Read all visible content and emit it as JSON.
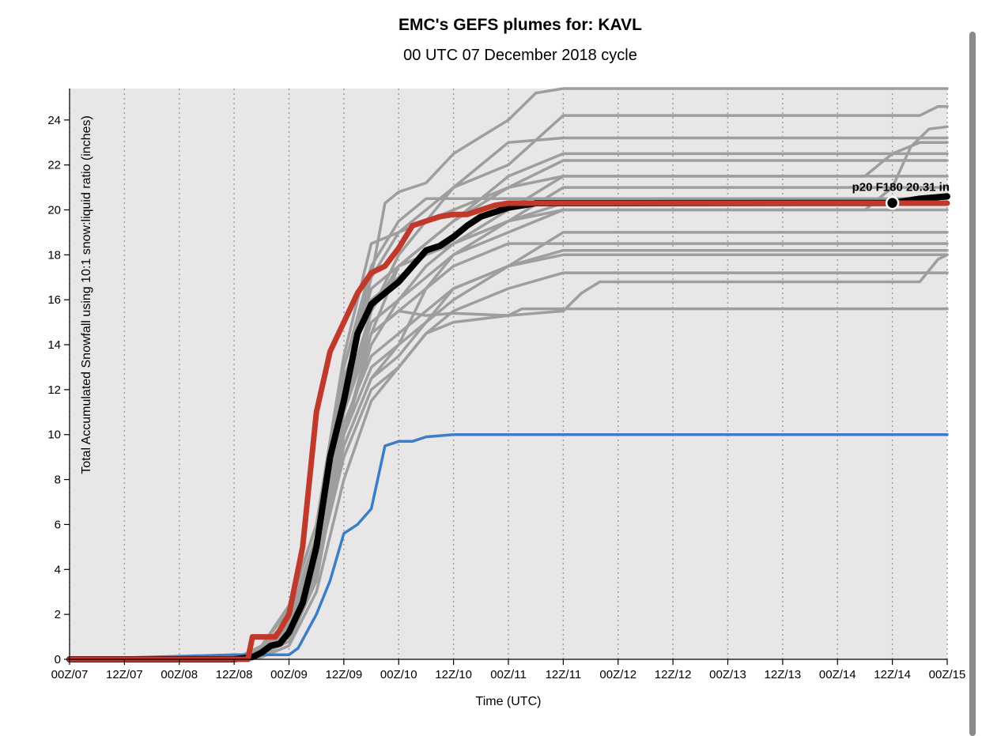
{
  "chart_data": {
    "type": "line",
    "title": "EMC's GEFS plumes for: KAVL",
    "subtitle": "00 UTC 07 December 2018 cycle",
    "xlabel": "Time (UTC)",
    "ylabel": "Total Accumulated Snowfall using 10:1 snow:liquid ratio (inches)",
    "x_unit": "forecast hour (F000 = 00Z/07)",
    "xlim": [
      0,
      192
    ],
    "ylim": [
      0,
      25.4
    ],
    "yticks": [
      0,
      2,
      4,
      6,
      8,
      10,
      12,
      14,
      16,
      18,
      20,
      22,
      24
    ],
    "xtick_labels": [
      "00Z/07",
      "12Z/07",
      "00Z/08",
      "12Z/08",
      "00Z/09",
      "12Z/09",
      "00Z/10",
      "12Z/10",
      "00Z/11",
      "12Z/11",
      "00Z/12",
      "12Z/12",
      "00Z/13",
      "12Z/13",
      "00Z/14",
      "12Z/14",
      "00Z/15"
    ],
    "grid": true,
    "legend": "none",
    "colors": {
      "members": "#9e9e9e",
      "black_series": "#000000",
      "red_series": "#c0392b",
      "blue_series": "#3a7dc9",
      "plot_bg": "#e8e6e7"
    },
    "annotation": {
      "text": "p20 F180 20.31 in",
      "x": 180,
      "y": 20.31
    },
    "series": [
      {
        "style": "gray",
        "x": [
          0,
          36,
          42,
          48,
          54,
          60,
          66,
          69,
          72,
          78,
          84,
          96,
          102,
          108,
          192
        ],
        "values": [
          0,
          0,
          0.5,
          1.5,
          5,
          12,
          17,
          20.3,
          20.8,
          21.2,
          22.5,
          24,
          25.2,
          25.4,
          25.4
        ]
      },
      {
        "style": "gray",
        "x": [
          0,
          36,
          42,
          48,
          54,
          60,
          66,
          72,
          78,
          84,
          90,
          96,
          108,
          192
        ],
        "values": [
          0,
          0,
          0.3,
          1.2,
          4.5,
          11,
          15.5,
          18,
          19.5,
          21,
          22,
          23,
          23.2,
          23.2
        ]
      },
      {
        "style": "gray",
        "x": [
          0,
          36,
          42,
          48,
          54,
          60,
          66,
          72,
          78,
          84,
          90,
          96,
          102,
          108,
          192
        ],
        "values": [
          0,
          0,
          0.5,
          1.8,
          5.5,
          13,
          17.5,
          19.5,
          20.5,
          20.5,
          20.5,
          20.5,
          20.5,
          20.5,
          20.5
        ]
      },
      {
        "style": "gray",
        "x": [
          0,
          36,
          42,
          48,
          54,
          60,
          66,
          72,
          78,
          84,
          96,
          108,
          192
        ],
        "values": [
          0,
          0,
          0.2,
          1,
          4,
          10,
          14.5,
          17.5,
          18.5,
          19.5,
          21.5,
          22.5,
          22.5
        ]
      },
      {
        "style": "gray",
        "x": [
          0,
          36,
          42,
          48,
          54,
          60,
          66,
          72,
          78,
          84,
          96,
          108,
          192
        ],
        "values": [
          0,
          0,
          0.6,
          2.4,
          6,
          13.5,
          18.5,
          19,
          19.5,
          20,
          21,
          21.5,
          21.5
        ]
      },
      {
        "style": "gray",
        "x": [
          0,
          36,
          42,
          48,
          54,
          60,
          66,
          72,
          78,
          84,
          96,
          108,
          192
        ],
        "values": [
          0,
          0,
          0.4,
          1.6,
          5,
          12,
          16.5,
          17.5,
          18,
          18.5,
          19.5,
          21,
          21
        ]
      },
      {
        "style": "gray",
        "x": [
          0,
          36,
          42,
          48,
          54,
          60,
          66,
          72,
          78,
          84,
          96,
          108,
          192
        ],
        "values": [
          0,
          0,
          0.3,
          1.2,
          4.5,
          11,
          15,
          16,
          17,
          18,
          19,
          20,
          20
        ]
      },
      {
        "style": "gray",
        "x": [
          0,
          36,
          42,
          48,
          54,
          60,
          66,
          72,
          78,
          84,
          96,
          108,
          192
        ],
        "values": [
          0,
          0,
          0.2,
          0.8,
          3.5,
          10,
          13,
          14,
          15,
          16,
          17.5,
          19,
          19
        ]
      },
      {
        "style": "gray",
        "x": [
          0,
          36,
          42,
          48,
          54,
          60,
          66,
          72,
          78,
          84,
          96,
          108,
          192
        ],
        "values": [
          0,
          0,
          0.5,
          1.5,
          5,
          11.5,
          14.5,
          15.5,
          16.5,
          17.5,
          18.5,
          18.5,
          18.5
        ]
      },
      {
        "style": "gray",
        "x": [
          0,
          36,
          42,
          48,
          54,
          60,
          66,
          72,
          78,
          84,
          96,
          108,
          192
        ],
        "values": [
          0,
          0,
          0.4,
          1.4,
          4.5,
          10.5,
          13.5,
          14.5,
          15.5,
          16.5,
          17.5,
          18.2,
          18.2
        ]
      },
      {
        "style": "gray",
        "x": [
          0,
          36,
          42,
          48,
          54,
          60,
          66,
          72,
          78,
          84,
          96,
          108,
          192
        ],
        "values": [
          0,
          0,
          0.2,
          1,
          3.8,
          9.5,
          12.5,
          13.5,
          15,
          16.5,
          17.5,
          18,
          18
        ]
      },
      {
        "style": "gray",
        "x": [
          0,
          36,
          42,
          48,
          54,
          60,
          66,
          72,
          78,
          84,
          96,
          108,
          192
        ],
        "values": [
          0,
          0,
          0.3,
          1.1,
          4,
          9,
          12,
          13,
          14.5,
          15.5,
          16.5,
          17.2,
          17.2
        ]
      },
      {
        "style": "gray",
        "x": [
          0,
          36,
          42,
          48,
          54,
          60,
          66,
          72,
          78,
          84,
          96,
          108,
          112,
          116,
          186,
          190,
          192
        ],
        "values": [
          0,
          0,
          0.1,
          0.6,
          3,
          8,
          11.5,
          13,
          14.5,
          15,
          15.3,
          15.5,
          16.3,
          16.8,
          16.8,
          17.8,
          18
        ]
      },
      {
        "style": "gray",
        "x": [
          0,
          36,
          42,
          48,
          54,
          60,
          66,
          72,
          78,
          84,
          96,
          99,
          102,
          192
        ],
        "values": [
          0,
          0,
          0.4,
          1.3,
          4.6,
          11,
          14.5,
          15.5,
          15.3,
          15.4,
          15.3,
          15.6,
          15.6,
          15.6
        ]
      },
      {
        "style": "gray",
        "x": [
          0,
          36,
          42,
          48,
          54,
          60,
          66,
          72,
          78,
          84,
          96,
          108,
          174,
          180,
          186,
          192
        ],
        "values": [
          0,
          0,
          0.5,
          1.8,
          5.5,
          12.5,
          16,
          17,
          18,
          18.5,
          20,
          21.5,
          21.5,
          22.5,
          23,
          23
        ]
      },
      {
        "style": "gray",
        "x": [
          0,
          36,
          42,
          48,
          54,
          60,
          66,
          72,
          78,
          84,
          96,
          108,
          174,
          180,
          184,
          188,
          192
        ],
        "values": [
          0,
          0,
          0.3,
          1.2,
          4.2,
          10,
          14,
          16,
          17.5,
          18.5,
          19.5,
          20,
          20,
          21,
          22.8,
          23.6,
          23.7
        ]
      },
      {
        "style": "gray",
        "x": [
          0,
          36,
          42,
          48,
          54,
          60,
          66,
          72,
          78,
          84,
          96,
          108,
          186,
          190,
          192
        ],
        "values": [
          0,
          0,
          0.6,
          2.2,
          6,
          13,
          17,
          19,
          20,
          21,
          22,
          24.2,
          24.2,
          24.6,
          24.6
        ]
      },
      {
        "style": "gray",
        "x": [
          0,
          36,
          42,
          48,
          54,
          60,
          66,
          72,
          78,
          84,
          96,
          108,
          192
        ],
        "values": [
          0,
          0,
          0.3,
          1,
          3.8,
          9.5,
          12.5,
          14,
          16.5,
          18,
          19.5,
          20.3,
          20.3
        ]
      },
      {
        "style": "gray",
        "x": [
          0,
          36,
          42,
          48,
          54,
          60,
          66,
          72,
          78,
          84,
          96,
          108,
          192
        ],
        "values": [
          0,
          0,
          0.4,
          1.4,
          4.8,
          11.5,
          15.5,
          17.5,
          18.5,
          19.5,
          21,
          22.2,
          22.2
        ]
      },
      {
        "style": "blue",
        "x": [
          0,
          36,
          48,
          50,
          54,
          57,
          60,
          63,
          66,
          69,
          72,
          75,
          78,
          84,
          192
        ],
        "values": [
          0,
          0.2,
          0.2,
          0.5,
          2,
          3.5,
          5.6,
          6,
          6.7,
          9.5,
          9.7,
          9.7,
          9.9,
          10,
          10
        ]
      },
      {
        "style": "black",
        "x": [
          0,
          36,
          40,
          42,
          44,
          46,
          48,
          51,
          54,
          57,
          60,
          63,
          66,
          69,
          72,
          75,
          78,
          81,
          84,
          87,
          90,
          93,
          96,
          102,
          108,
          180,
          186,
          192
        ],
        "values": [
          0,
          0,
          0.1,
          0.3,
          0.6,
          0.7,
          1.2,
          2.5,
          5,
          9,
          11.5,
          14.5,
          15.8,
          16.3,
          16.8,
          17.5,
          18.2,
          18.4,
          18.8,
          19.3,
          19.7,
          19.9,
          20.1,
          20.3,
          20.3,
          20.31,
          20.5,
          20.6
        ]
      },
      {
        "style": "red",
        "x": [
          0,
          36,
          39,
          40,
          42,
          45,
          46,
          48,
          51,
          54,
          57,
          60,
          63,
          66,
          69,
          72,
          75,
          78,
          81,
          84,
          87,
          90,
          93,
          96,
          102,
          108,
          192
        ],
        "values": [
          0,
          0,
          0,
          1,
          1,
          1,
          1.3,
          2,
          5,
          11,
          13.7,
          15,
          16.3,
          17.2,
          17.5,
          18.3,
          19.3,
          19.5,
          19.7,
          19.8,
          19.8,
          20,
          20.2,
          20.3,
          20.3,
          20.3,
          20.3
        ]
      }
    ]
  }
}
